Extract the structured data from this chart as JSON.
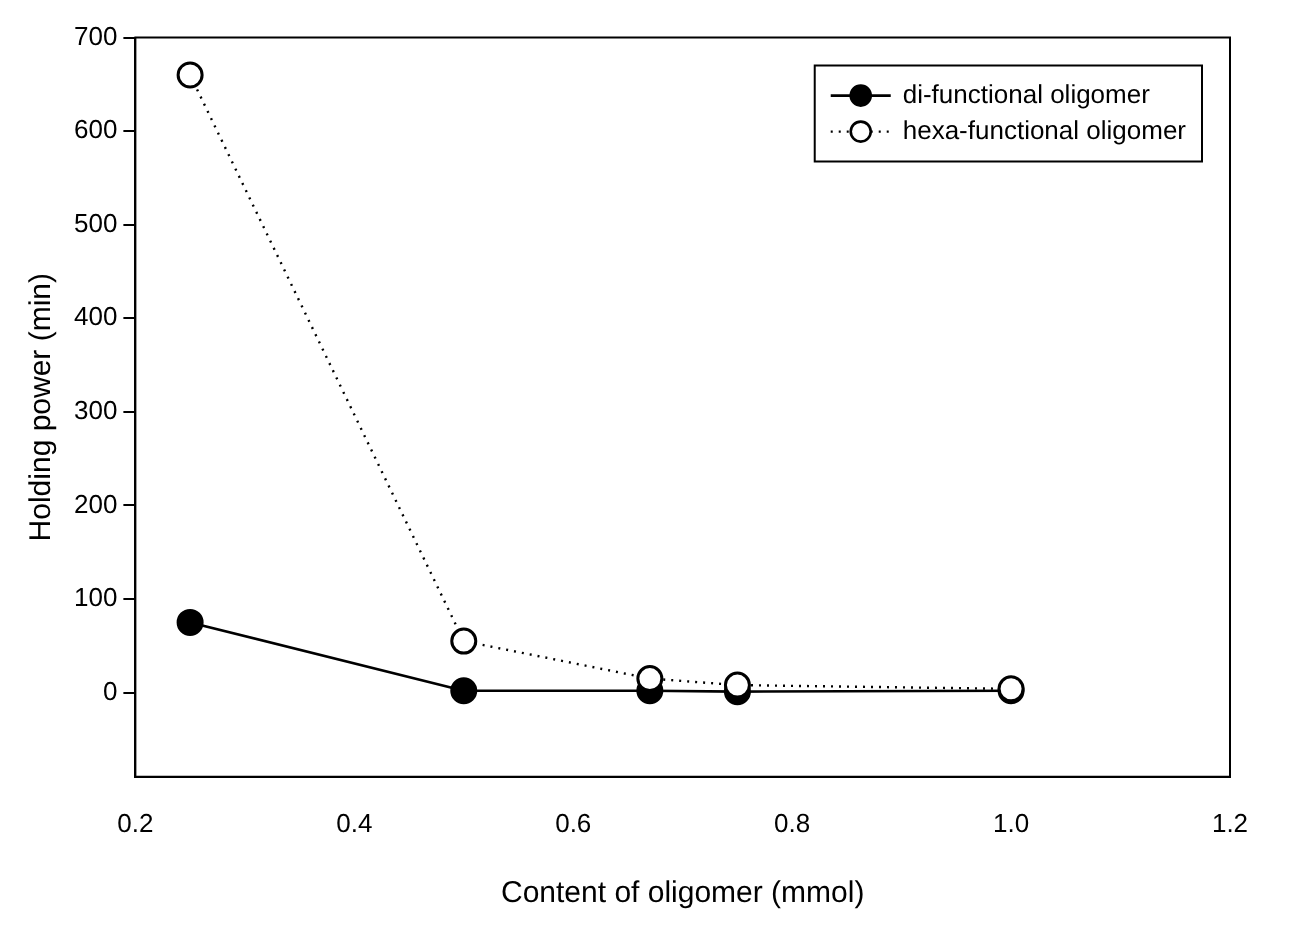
{
  "chart_data": {
    "type": "line",
    "xlabel": "Content of oligomer (mmol)",
    "ylabel": "Holding power (min)",
    "xlim": [
      0.2,
      1.2
    ],
    "xticks": [
      0.2,
      0.4,
      0.6,
      0.8,
      {
        "value": 1.0,
        "label": "1.0"
      },
      1.2
    ],
    "ylim": [
      -90,
      700
    ],
    "yticks": [
      0,
      100,
      200,
      300,
      400,
      500,
      600,
      700
    ],
    "x": [
      0.25,
      0.5,
      0.67,
      0.75,
      1.0
    ],
    "series": [
      {
        "name": "di-functional oligomer",
        "color": "#000000",
        "values": [
          75,
          2,
          2,
          1,
          2
        ],
        "marker": "circle",
        "line_style": "solid"
      },
      {
        "name": "hexa-functional oligomer",
        "color": "#000000",
        "values": [
          660,
          55,
          15,
          8,
          4
        ],
        "marker": "circle",
        "line_style": "dotted"
      }
    ],
    "grid": false,
    "legend": "top right"
  }
}
